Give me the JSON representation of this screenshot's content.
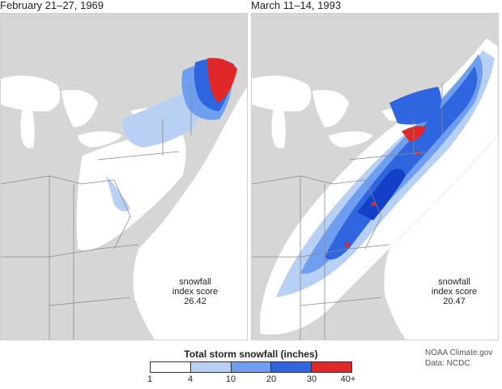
{
  "panels": [
    {
      "title": "February 21–27, 1969",
      "score_label": "snowfall\nindex score",
      "score_value": "26.42"
    },
    {
      "title": "March 11–14, 1993",
      "score_label": "snowfall\nindex score",
      "score_value": "20.47"
    }
  ],
  "legend": {
    "title": "Total storm snowfall (inches)",
    "ticks": [
      "1",
      "4",
      "10",
      "20",
      "30",
      "40+"
    ],
    "colors": [
      "#ffffff",
      "#b9d0f5",
      "#6e9ef0",
      "#2f66e0",
      "#1440c8",
      "#e02828"
    ]
  },
  "credit": {
    "line1": "NOAA Climate.gov",
    "line2": "Data: NCDC"
  },
  "map_colors": {
    "land": "#d6d6d6",
    "water": "#ffffff",
    "borders": "#8a8a8a"
  }
}
